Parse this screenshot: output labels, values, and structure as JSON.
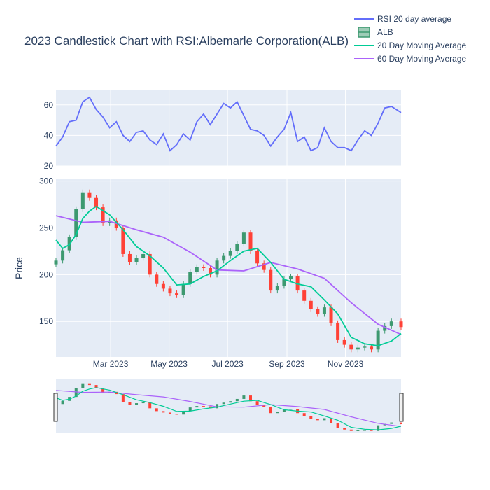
{
  "chart_data": {
    "type": "candlestick",
    "title": "2023 Candlestick Chart with RSI:Albemarle Corporation(ALB)",
    "ylabel": "Price",
    "x_range": [
      "2023-01-03",
      "2023-12-29"
    ],
    "x_ticks": [
      "2023-03-01",
      "2023-05-01",
      "2023-07-01",
      "2023-09-01",
      "2023-11-01"
    ],
    "x_tick_labels": [
      "Mar 2023",
      "May 2023",
      "Jul 2023",
      "Sep 2023",
      "Nov 2023"
    ],
    "rsi_panel": {
      "ylim": [
        20,
        70
      ],
      "y_ticks": [
        20,
        40,
        60
      ],
      "series": {
        "name": "RSI 20 day average",
        "color": "#636efa",
        "points": [
          [
            "2023-01-03",
            33
          ],
          [
            "2023-01-10",
            39
          ],
          [
            "2023-01-17",
            49
          ],
          [
            "2023-01-24",
            50
          ],
          [
            "2023-01-31",
            62
          ],
          [
            "2023-02-07",
            65
          ],
          [
            "2023-02-14",
            57
          ],
          [
            "2023-02-21",
            52
          ],
          [
            "2023-02-28",
            45
          ],
          [
            "2023-03-07",
            49
          ],
          [
            "2023-03-14",
            40
          ],
          [
            "2023-03-21",
            36
          ],
          [
            "2023-03-28",
            42
          ],
          [
            "2023-04-04",
            43
          ],
          [
            "2023-04-11",
            37
          ],
          [
            "2023-04-18",
            34
          ],
          [
            "2023-04-25",
            41
          ],
          [
            "2023-05-02",
            30
          ],
          [
            "2023-05-09",
            34
          ],
          [
            "2023-05-16",
            41
          ],
          [
            "2023-05-23",
            37
          ],
          [
            "2023-05-30",
            49
          ],
          [
            "2023-06-06",
            54
          ],
          [
            "2023-06-13",
            47
          ],
          [
            "2023-06-20",
            54
          ],
          [
            "2023-06-27",
            61
          ],
          [
            "2023-07-04",
            58
          ],
          [
            "2023-07-11",
            62
          ],
          [
            "2023-07-18",
            53
          ],
          [
            "2023-07-25",
            44
          ],
          [
            "2023-08-01",
            43
          ],
          [
            "2023-08-08",
            40
          ],
          [
            "2023-08-15",
            33
          ],
          [
            "2023-08-22",
            39
          ],
          [
            "2023-08-29",
            44
          ],
          [
            "2023-09-05",
            55
          ],
          [
            "2023-09-12",
            36
          ],
          [
            "2023-09-19",
            39
          ],
          [
            "2023-09-26",
            30
          ],
          [
            "2023-10-03",
            32
          ],
          [
            "2023-10-10",
            45
          ],
          [
            "2023-10-17",
            36
          ],
          [
            "2023-10-24",
            32
          ],
          [
            "2023-10-31",
            32
          ],
          [
            "2023-11-07",
            30
          ],
          [
            "2023-11-14",
            37
          ],
          [
            "2023-11-21",
            43
          ],
          [
            "2023-11-28",
            40
          ],
          [
            "2023-12-05",
            48
          ],
          [
            "2023-12-12",
            58
          ],
          [
            "2023-12-19",
            59
          ],
          [
            "2023-12-29",
            55
          ]
        ]
      }
    },
    "price_panel": {
      "ylim": [
        112,
        302
      ],
      "y_ticks": [
        150,
        200,
        250,
        300
      ],
      "candles": {
        "name": "ALB",
        "increasing_color": "#3d9970",
        "decreasing_color": "#ff4136",
        "close": [
          [
            "2023-01-03",
            215
          ],
          [
            "2023-01-10",
            226
          ],
          [
            "2023-01-17",
            240
          ],
          [
            "2023-01-24",
            270
          ],
          [
            "2023-01-31",
            288
          ],
          [
            "2023-02-07",
            282
          ],
          [
            "2023-02-14",
            272
          ],
          [
            "2023-02-21",
            255
          ],
          [
            "2023-02-28",
            258
          ],
          [
            "2023-03-07",
            250
          ],
          [
            "2023-03-14",
            222
          ],
          [
            "2023-03-21",
            213
          ],
          [
            "2023-03-28",
            218
          ],
          [
            "2023-04-04",
            222
          ],
          [
            "2023-04-11",
            200
          ],
          [
            "2023-04-18",
            190
          ],
          [
            "2023-04-25",
            185
          ],
          [
            "2023-05-02",
            180
          ],
          [
            "2023-05-09",
            178
          ],
          [
            "2023-05-16",
            190
          ],
          [
            "2023-05-23",
            203
          ],
          [
            "2023-05-30",
            208
          ],
          [
            "2023-06-06",
            207
          ],
          [
            "2023-06-13",
            200
          ],
          [
            "2023-06-20",
            215
          ],
          [
            "2023-06-27",
            220
          ],
          [
            "2023-07-04",
            225
          ],
          [
            "2023-07-11",
            233
          ],
          [
            "2023-07-18",
            245
          ],
          [
            "2023-07-25",
            225
          ],
          [
            "2023-08-01",
            212
          ],
          [
            "2023-08-08",
            205
          ],
          [
            "2023-08-15",
            183
          ],
          [
            "2023-08-22",
            188
          ],
          [
            "2023-08-29",
            195
          ],
          [
            "2023-09-05",
            198
          ],
          [
            "2023-09-12",
            183
          ],
          [
            "2023-09-19",
            172
          ],
          [
            "2023-09-26",
            163
          ],
          [
            "2023-10-03",
            158
          ],
          [
            "2023-10-10",
            165
          ],
          [
            "2023-10-17",
            148
          ],
          [
            "2023-10-24",
            130
          ],
          [
            "2023-10-31",
            125
          ],
          [
            "2023-11-07",
            120
          ],
          [
            "2023-11-14",
            122
          ],
          [
            "2023-11-21",
            123
          ],
          [
            "2023-11-28",
            120
          ],
          [
            "2023-12-05",
            140
          ],
          [
            "2023-12-12",
            145
          ],
          [
            "2023-12-19",
            150
          ],
          [
            "2023-12-29",
            144
          ]
        ]
      },
      "ma20": {
        "name": "20 Day Moving Average",
        "color": "#00cc96",
        "points": [
          [
            "2023-01-03",
            237
          ],
          [
            "2023-01-10",
            228
          ],
          [
            "2023-01-17",
            232
          ],
          [
            "2023-01-24",
            243
          ],
          [
            "2023-01-31",
            260
          ],
          [
            "2023-02-07",
            268
          ],
          [
            "2023-02-14",
            273
          ],
          [
            "2023-02-28",
            264
          ],
          [
            "2023-03-14",
            248
          ],
          [
            "2023-03-28",
            230
          ],
          [
            "2023-04-11",
            220
          ],
          [
            "2023-04-25",
            207
          ],
          [
            "2023-05-09",
            189
          ],
          [
            "2023-05-23",
            190
          ],
          [
            "2023-06-06",
            198
          ],
          [
            "2023-06-20",
            204
          ],
          [
            "2023-07-04",
            215
          ],
          [
            "2023-07-18",
            225
          ],
          [
            "2023-08-01",
            228
          ],
          [
            "2023-08-15",
            213
          ],
          [
            "2023-08-29",
            195
          ],
          [
            "2023-09-12",
            190
          ],
          [
            "2023-09-26",
            187
          ],
          [
            "2023-10-10",
            173
          ],
          [
            "2023-10-24",
            158
          ],
          [
            "2023-11-07",
            133
          ],
          [
            "2023-11-21",
            126
          ],
          [
            "2023-12-05",
            124
          ],
          [
            "2023-12-19",
            129
          ],
          [
            "2023-12-29",
            137
          ]
        ]
      },
      "ma60": {
        "name": "60 Day Moving Average",
        "color": "#ab63fa",
        "points": [
          [
            "2023-01-03",
            263
          ],
          [
            "2023-01-31",
            256
          ],
          [
            "2023-02-28",
            257
          ],
          [
            "2023-03-28",
            248
          ],
          [
            "2023-04-25",
            240
          ],
          [
            "2023-05-23",
            224
          ],
          [
            "2023-06-20",
            205
          ],
          [
            "2023-07-18",
            204
          ],
          [
            "2023-08-15",
            213
          ],
          [
            "2023-09-12",
            206
          ],
          [
            "2023-10-10",
            196
          ],
          [
            "2023-11-07",
            170
          ],
          [
            "2023-12-05",
            147
          ],
          [
            "2023-12-29",
            136
          ]
        ]
      }
    },
    "legend": {
      "placement": "top-right",
      "items": [
        {
          "label": "RSI 20 day average",
          "kind": "line",
          "color": "#636efa"
        },
        {
          "label": "ALB",
          "kind": "candle",
          "color": "#3d9970"
        },
        {
          "label": "20 Day Moving Average",
          "kind": "line",
          "color": "#00cc96"
        },
        {
          "label": "60 Day Moving Average",
          "kind": "line",
          "color": "#ab63fa"
        }
      ]
    },
    "range_slider": true,
    "grid": true,
    "plot_bgcolor": "#e5ecf6",
    "gridcolor": "#ffffff"
  }
}
